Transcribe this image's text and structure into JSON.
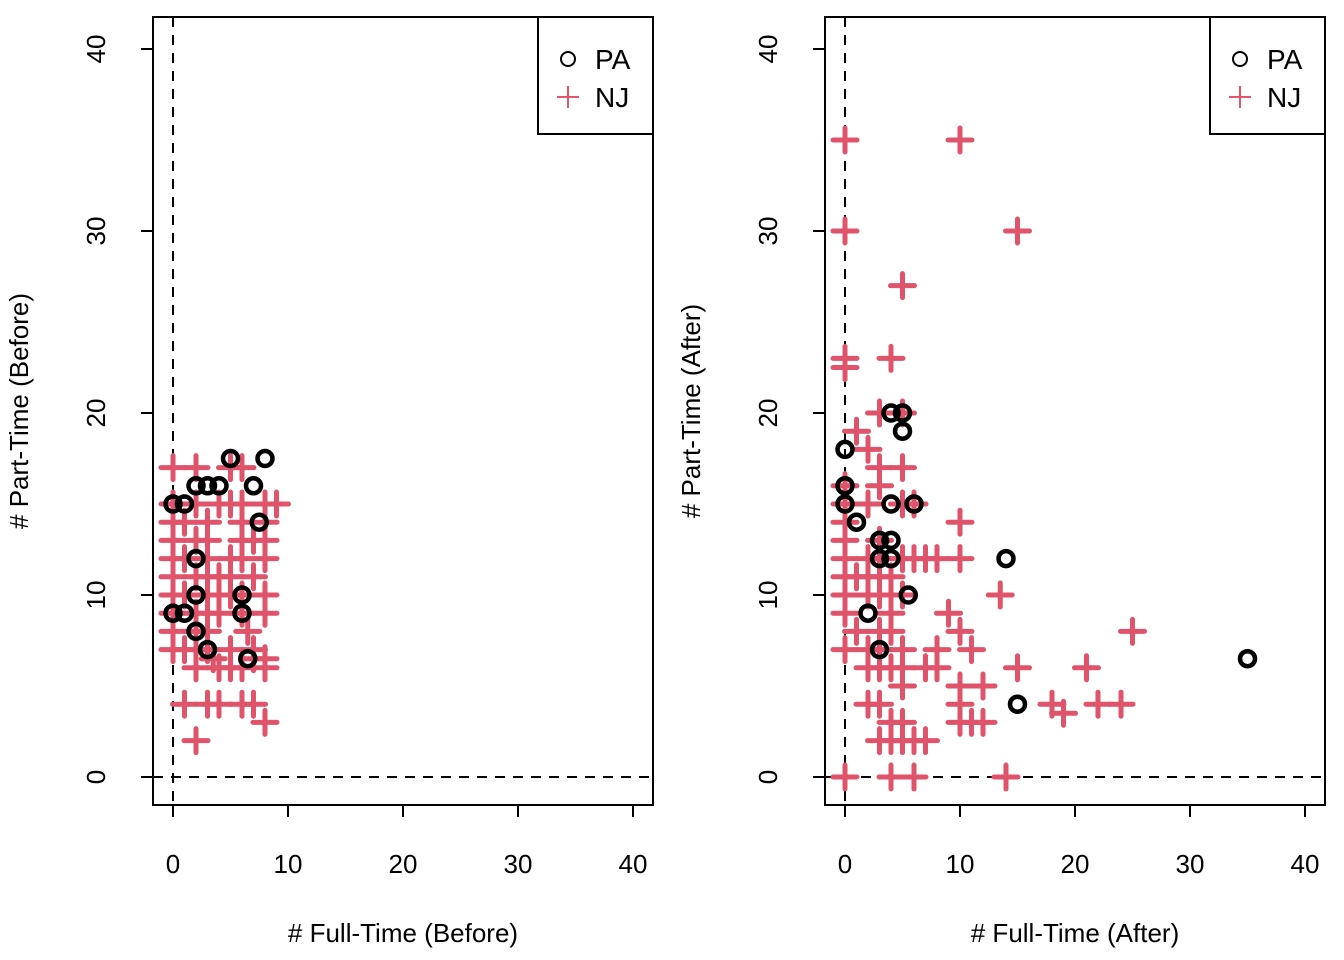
{
  "chart_data": [
    {
      "type": "scatter",
      "title": "",
      "xlabel": "# Full-Time (Before)",
      "ylabel": "# Part-Time (Before)",
      "xlim": [
        -1.7,
        41.7
      ],
      "ylim": [
        -1.6,
        41.6
      ],
      "xticks": [
        "0",
        "10",
        "20",
        "30",
        "40"
      ],
      "yticks": [
        "0",
        "10",
        "20",
        "30",
        "40"
      ],
      "reference_lines": {
        "vertical_x": 0,
        "horizontal_y": 0,
        "style": "dashed"
      },
      "legend": {
        "position": "top-right",
        "entries": [
          {
            "label": "PA",
            "marker": "circle",
            "color": "#000000"
          },
          {
            "label": "NJ",
            "marker": "plus",
            "color": "#DF536B"
          }
        ]
      },
      "series": [
        {
          "name": "PA",
          "marker": "circle",
          "color": "#000000",
          "points": [
            [
              0,
              15
            ],
            [
              1,
              15
            ],
            [
              2,
              16
            ],
            [
              3,
              16
            ],
            [
              4,
              16
            ],
            [
              5,
              17.5
            ],
            [
              7,
              16
            ],
            [
              8,
              17.5
            ],
            [
              7.5,
              14
            ],
            [
              2,
              12
            ],
            [
              2,
              10
            ],
            [
              6,
              10
            ],
            [
              0,
              9
            ],
            [
              1,
              9
            ],
            [
              6,
              9
            ],
            [
              2,
              8
            ],
            [
              3,
              7
            ],
            [
              6.5,
              6.5
            ]
          ]
        },
        {
          "name": "NJ",
          "marker": "plus",
          "color": "#DF536B",
          "points": [
            [
              0,
              17
            ],
            [
              2,
              17
            ],
            [
              5,
              17
            ],
            [
              6,
              17
            ],
            [
              0,
              15
            ],
            [
              2,
              15
            ],
            [
              4,
              15
            ],
            [
              5,
              15
            ],
            [
              6,
              15
            ],
            [
              8,
              15
            ],
            [
              9,
              15
            ],
            [
              0,
              14
            ],
            [
              1,
              14
            ],
            [
              3,
              14
            ],
            [
              6,
              14
            ],
            [
              8,
              14
            ],
            [
              0,
              13
            ],
            [
              2,
              13
            ],
            [
              3,
              13
            ],
            [
              6,
              13
            ],
            [
              7,
              13
            ],
            [
              8,
              13
            ],
            [
              0,
              12
            ],
            [
              1,
              12
            ],
            [
              3,
              12
            ],
            [
              5,
              12
            ],
            [
              6,
              12
            ],
            [
              8,
              12
            ],
            [
              0,
              11
            ],
            [
              2,
              11
            ],
            [
              3,
              11
            ],
            [
              4,
              11
            ],
            [
              5,
              11
            ],
            [
              7,
              11
            ],
            [
              0,
              10
            ],
            [
              1,
              10
            ],
            [
              3,
              10
            ],
            [
              4,
              10
            ],
            [
              5,
              10
            ],
            [
              6,
              10
            ],
            [
              8,
              10
            ],
            [
              0,
              9
            ],
            [
              2,
              9
            ],
            [
              3,
              9
            ],
            [
              4,
              9
            ],
            [
              6,
              9
            ],
            [
              8,
              9
            ],
            [
              0,
              8
            ],
            [
              2,
              8
            ],
            [
              3,
              8
            ],
            [
              6.5,
              8
            ],
            [
              0,
              7
            ],
            [
              1,
              7
            ],
            [
              2,
              7
            ],
            [
              3,
              7
            ],
            [
              5,
              7
            ],
            [
              7,
              7
            ],
            [
              3.5,
              6.5
            ],
            [
              6,
              6
            ],
            [
              7,
              6.5
            ],
            [
              8,
              6.5
            ],
            [
              2,
              6
            ],
            [
              4,
              6
            ],
            [
              5,
              6
            ],
            [
              8,
              6
            ],
            [
              1,
              4
            ],
            [
              3,
              4
            ],
            [
              4,
              4
            ],
            [
              6,
              4
            ],
            [
              7,
              4
            ],
            [
              8,
              3
            ],
            [
              2,
              2
            ]
          ]
        }
      ]
    },
    {
      "type": "scatter",
      "title": "",
      "xlabel": "# Full-Time (After)",
      "ylabel": "# Part-Time (After)",
      "xlim": [
        -1.7,
        41.7
      ],
      "ylim": [
        -1.6,
        41.6
      ],
      "xticks": [
        "0",
        "10",
        "20",
        "30",
        "40"
      ],
      "yticks": [
        "0",
        "10",
        "20",
        "30",
        "40"
      ],
      "reference_lines": {
        "vertical_x": 0,
        "horizontal_y": 0,
        "style": "dashed"
      },
      "legend": {
        "position": "top-right",
        "entries": [
          {
            "label": "PA",
            "marker": "circle",
            "color": "#000000"
          },
          {
            "label": "NJ",
            "marker": "plus",
            "color": "#DF536B"
          }
        ]
      },
      "series": [
        {
          "name": "PA",
          "marker": "circle",
          "color": "#000000",
          "points": [
            [
              4,
              20
            ],
            [
              5,
              20
            ],
            [
              5,
              19
            ],
            [
              0,
              18
            ],
            [
              0,
              16
            ],
            [
              0,
              15
            ],
            [
              4,
              15
            ],
            [
              6,
              15
            ],
            [
              1,
              14
            ],
            [
              3,
              13
            ],
            [
              4,
              13
            ],
            [
              3,
              12
            ],
            [
              4,
              12
            ],
            [
              14,
              12
            ],
            [
              5.5,
              10
            ],
            [
              2,
              9
            ],
            [
              3,
              7
            ],
            [
              35,
              6.5
            ],
            [
              15,
              4
            ]
          ]
        },
        {
          "name": "NJ",
          "marker": "plus",
          "color": "#DF536B",
          "points": [
            [
              0,
              35
            ],
            [
              10,
              35
            ],
            [
              0,
              30
            ],
            [
              15,
              30
            ],
            [
              5,
              27
            ],
            [
              0,
              23
            ],
            [
              4,
              23
            ],
            [
              0,
              22.5
            ],
            [
              3,
              20
            ],
            [
              5,
              20
            ],
            [
              1,
              19
            ],
            [
              2,
              18
            ],
            [
              3,
              17
            ],
            [
              5,
              17
            ],
            [
              0,
              16
            ],
            [
              3,
              16
            ],
            [
              0,
              15
            ],
            [
              2,
              15
            ],
            [
              5,
              15
            ],
            [
              6,
              15
            ],
            [
              0,
              14
            ],
            [
              10,
              14
            ],
            [
              0,
              13
            ],
            [
              3,
              13
            ],
            [
              0,
              12
            ],
            [
              2,
              12
            ],
            [
              3,
              12
            ],
            [
              5,
              12
            ],
            [
              6,
              12
            ],
            [
              7,
              12
            ],
            [
              8,
              12
            ],
            [
              10,
              12
            ],
            [
              0,
              11
            ],
            [
              1,
              11
            ],
            [
              2,
              11
            ],
            [
              3,
              11
            ],
            [
              4,
              11
            ],
            [
              0,
              10
            ],
            [
              2,
              10
            ],
            [
              3,
              10
            ],
            [
              4,
              10
            ],
            [
              5,
              10
            ],
            [
              13.5,
              10
            ],
            [
              0,
              9
            ],
            [
              4,
              9
            ],
            [
              9,
              9
            ],
            [
              1,
              8
            ],
            [
              3,
              8
            ],
            [
              4,
              8
            ],
            [
              10,
              8
            ],
            [
              25,
              8
            ],
            [
              0,
              7
            ],
            [
              2,
              7
            ],
            [
              3,
              7
            ],
            [
              5,
              7
            ],
            [
              8,
              7
            ],
            [
              11,
              7
            ],
            [
              2,
              6
            ],
            [
              3,
              6
            ],
            [
              4,
              6
            ],
            [
              5,
              6
            ],
            [
              7,
              6
            ],
            [
              8,
              6
            ],
            [
              15,
              6
            ],
            [
              21,
              6
            ],
            [
              5,
              5
            ],
            [
              10,
              5
            ],
            [
              12,
              5
            ],
            [
              2,
              4
            ],
            [
              3,
              4
            ],
            [
              10,
              4
            ],
            [
              18,
              4
            ],
            [
              22,
              4
            ],
            [
              24,
              4
            ],
            [
              4,
              3
            ],
            [
              10,
              3
            ],
            [
              11,
              3
            ],
            [
              12,
              3
            ],
            [
              5,
              3
            ],
            [
              19,
              3.5
            ],
            [
              3,
              2
            ],
            [
              4,
              2
            ],
            [
              5,
              2
            ],
            [
              6,
              2
            ],
            [
              7,
              2
            ],
            [
              0,
              0
            ],
            [
              4,
              0
            ],
            [
              6,
              0
            ],
            [
              14,
              0
            ]
          ]
        }
      ]
    }
  ]
}
